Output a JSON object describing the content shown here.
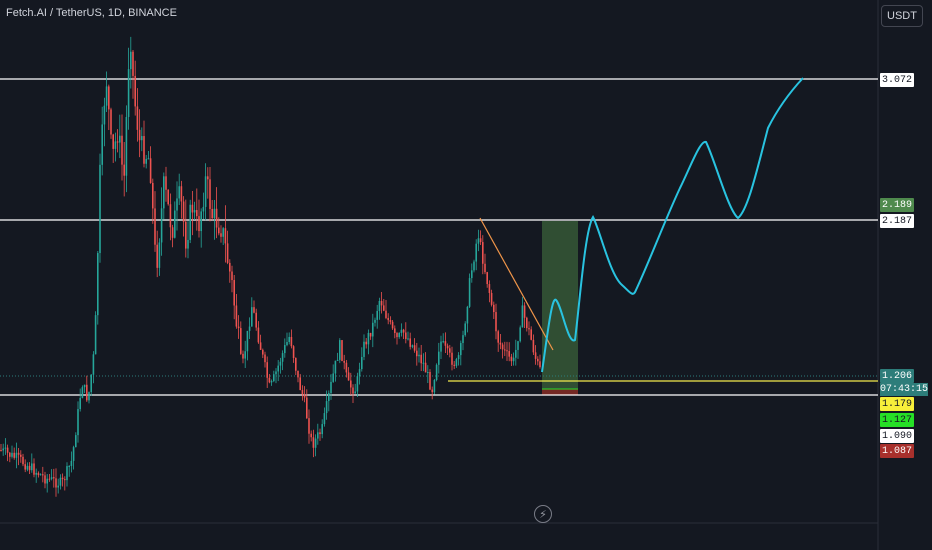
{
  "header": {
    "title": "Fetch.AI / TetherUS, 1D, BINANCE"
  },
  "currency_button": {
    "label": "USDT"
  },
  "price_scale": {
    "levels": [
      {
        "label": "3.072",
        "bg": "#ffffff",
        "fg": "#131722"
      },
      {
        "label": "2.189",
        "bg": "#4f8a4d",
        "fg": "#ffffff"
      },
      {
        "label": "2.187",
        "bg": "#ffffff",
        "fg": "#131722"
      },
      {
        "label": "1.206",
        "bg": "#2d7d7a",
        "fg": "#ffffff"
      },
      {
        "label": "1.179",
        "bg": "#f7ef3a",
        "fg": "#131722"
      },
      {
        "label": "1.127",
        "bg": "#26e026",
        "fg": "#131722"
      },
      {
        "label": "1.090",
        "bg": "#ffffff",
        "fg": "#131722"
      },
      {
        "label": "1.087",
        "bg": "#a8302c",
        "fg": "#ffffff"
      }
    ],
    "countdown": "07:43:15"
  },
  "colors": {
    "background": "#141821",
    "bull": "#26a69a",
    "bear": "#ef5350",
    "level_line": "#ffffff",
    "entry_line": "#f2e94e",
    "trendline": "#f0954a",
    "projection": "#29c3e0",
    "target_zone": "#3f6b3e",
    "stop_zone": "#7e2a25"
  },
  "icons": {
    "replay": "lightning-icon"
  }
}
